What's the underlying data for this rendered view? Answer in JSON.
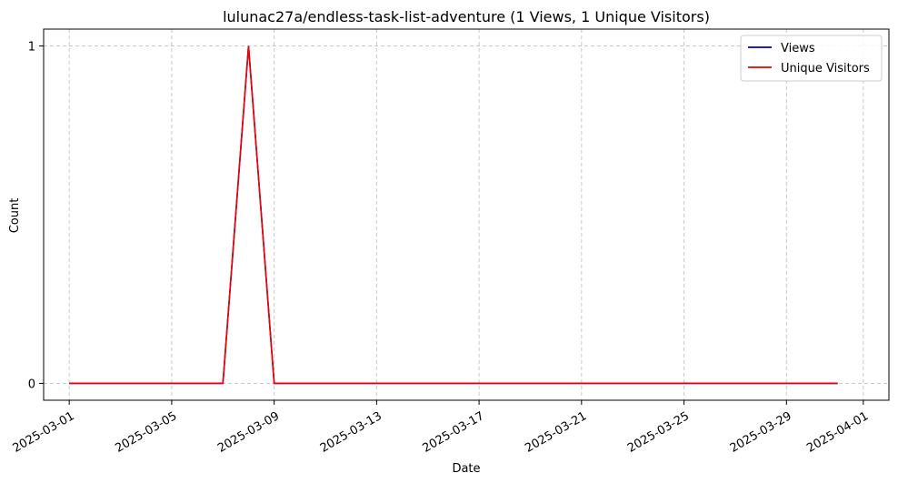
{
  "chart_data": {
    "type": "line",
    "title": "lulunac27a/endless-task-list-adventure (1 Views, 1 Unique Visitors)",
    "xlabel": "Date",
    "ylabel": "Count",
    "x": [
      "2025-03-01",
      "2025-03-02",
      "2025-03-03",
      "2025-03-04",
      "2025-03-05",
      "2025-03-06",
      "2025-03-07",
      "2025-03-08",
      "2025-03-09",
      "2025-03-10",
      "2025-03-11",
      "2025-03-12",
      "2025-03-13",
      "2025-03-14",
      "2025-03-15",
      "2025-03-16",
      "2025-03-17",
      "2025-03-18",
      "2025-03-19",
      "2025-03-20",
      "2025-03-21",
      "2025-03-22",
      "2025-03-23",
      "2025-03-24",
      "2025-03-25",
      "2025-03-26",
      "2025-03-27",
      "2025-03-28",
      "2025-03-29",
      "2025-03-30",
      "2025-03-31"
    ],
    "series": [
      {
        "name": "Views",
        "color": "#0000aa",
        "values": [
          0,
          0,
          0,
          0,
          0,
          0,
          0,
          1,
          0,
          0,
          0,
          0,
          0,
          0,
          0,
          0,
          0,
          0,
          0,
          0,
          0,
          0,
          0,
          0,
          0,
          0,
          0,
          0,
          0,
          0,
          0
        ]
      },
      {
        "name": "Unique Visitors",
        "color": "#ee0000",
        "values": [
          0,
          0,
          0,
          0,
          0,
          0,
          0,
          1,
          0,
          0,
          0,
          0,
          0,
          0,
          0,
          0,
          0,
          0,
          0,
          0,
          0,
          0,
          0,
          0,
          0,
          0,
          0,
          0,
          0,
          0,
          0
        ]
      }
    ],
    "xticks": [
      "2025-03-01",
      "2025-03-05",
      "2025-03-09",
      "2025-03-13",
      "2025-03-17",
      "2025-03-21",
      "2025-03-25",
      "2025-03-29",
      "2025-04-01"
    ],
    "yticks": [
      0,
      1
    ],
    "xlim": [
      "2025-02-28",
      "2025-04-02"
    ],
    "ylim": [
      -0.05,
      1.05
    ],
    "grid": true,
    "legend_position": "top-right",
    "grid_color": "#c8c8c8"
  }
}
